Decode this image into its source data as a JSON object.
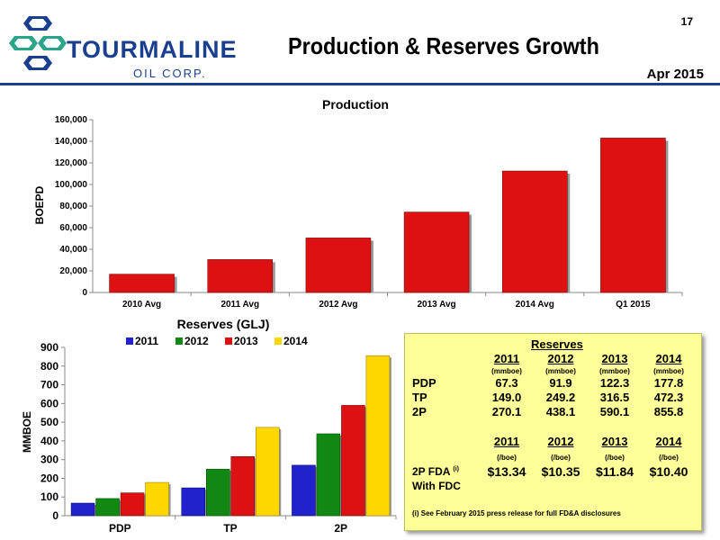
{
  "header": {
    "logo_name": "TOURMALINE",
    "logo_sub": "OIL CORP.",
    "title": "Production & Reserves Growth",
    "page_number": "17",
    "date": "Apr 2015"
  },
  "colors": {
    "brand_blue": "#1b3f8f",
    "logo_green": "#2aa58a",
    "bar_red": "#dd1111",
    "bar_blue": "#2222cc",
    "bar_green": "#118811",
    "bar_yellow": "#ffd700",
    "box_yellow": "#ffff99"
  },
  "chart_data": [
    {
      "type": "bar",
      "title": "Production",
      "ylabel": "BOEPD",
      "xlabel": "",
      "categories": [
        "2010 Avg",
        "2011 Avg",
        "2012 Avg",
        "2013 Avg",
        "2014 Avg",
        "Q1 2015"
      ],
      "values": [
        17000,
        30500,
        50500,
        74500,
        112500,
        143000
      ],
      "ylim": [
        0,
        160000
      ],
      "yticks": [
        "0",
        "20,000",
        "40,000",
        "60,000",
        "80,000",
        "100,000",
        "120,000",
        "140,000",
        "160,000"
      ],
      "grid": false,
      "legend": "none"
    },
    {
      "type": "bar",
      "title": "Reserves (GLJ)",
      "ylabel": "MMBOE",
      "xlabel": "",
      "categories": [
        "PDP",
        "TP",
        "2P"
      ],
      "series": [
        {
          "name": "2011",
          "values": [
            67.3,
            149.0,
            270.1
          ]
        },
        {
          "name": "2012",
          "values": [
            91.9,
            249.2,
            438.1
          ]
        },
        {
          "name": "2013",
          "values": [
            122.3,
            316.5,
            590.1
          ]
        },
        {
          "name": "2014",
          "values": [
            177.8,
            472.3,
            855.8
          ]
        }
      ],
      "ylim": [
        0,
        900
      ],
      "yticks": [
        "0",
        "100",
        "200",
        "300",
        "400",
        "500",
        "600",
        "700",
        "800",
        "900"
      ],
      "grid": false,
      "legend": "top"
    }
  ],
  "reserves_table": {
    "title": "Reserves",
    "years": [
      "2011",
      "2012",
      "2013",
      "2014"
    ],
    "unit_mmboe": "(mmboe)",
    "rows": [
      {
        "label": "PDP",
        "values": [
          "67.3",
          "91.9",
          "122.3",
          "177.8"
        ]
      },
      {
        "label": "TP",
        "values": [
          "149.0",
          "249.2",
          "316.5",
          "472.3"
        ]
      },
      {
        "label": "2P",
        "values": [
          "270.1",
          "438.1",
          "590.1",
          "855.8"
        ]
      }
    ],
    "unit_boe": "(/boe)",
    "fda_label": "2P FDA",
    "fda_sup": "(i)",
    "fda_sub": "With FDC",
    "fda_values": [
      "$13.34",
      "$10.35",
      "$11.84",
      "$10.40"
    ],
    "footnote": "(i)  See February 2015 press release for full FD&A disclosures"
  }
}
